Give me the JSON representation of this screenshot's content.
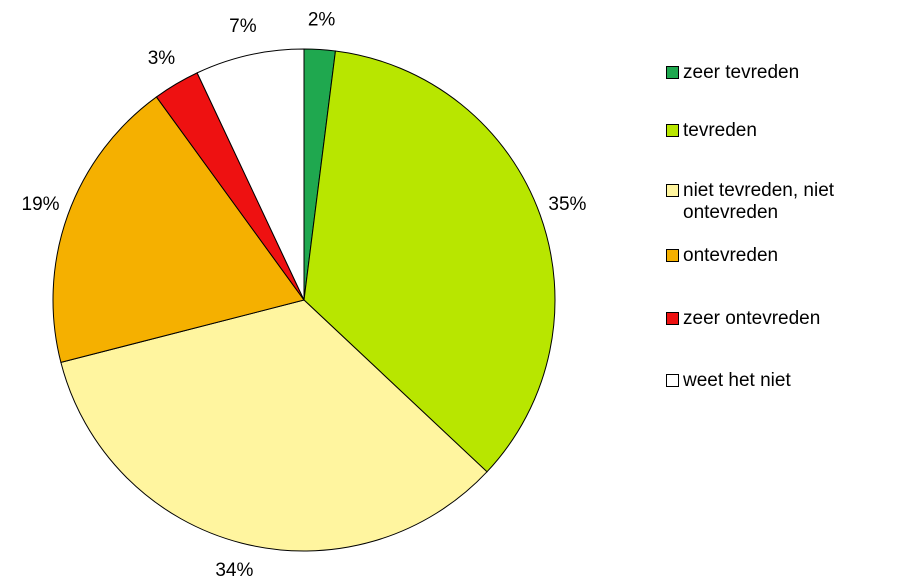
{
  "chart_data": {
    "type": "pie",
    "categories": [
      "zeer tevreden",
      "tevreden",
      "niet tevreden, niet ontevreden",
      "ontevreden",
      "zeer ontevreden",
      "weet het niet"
    ],
    "values": [
      2,
      35,
      34,
      19,
      3,
      7
    ],
    "value_labels": [
      "2%",
      "35%",
      "34%",
      "19%",
      "3%",
      "7%"
    ],
    "colors": [
      "#1fa84f",
      "#b8e600",
      "#fff59f",
      "#f5b000",
      "#ee1111",
      "#ffffff"
    ],
    "legend": "right"
  }
}
